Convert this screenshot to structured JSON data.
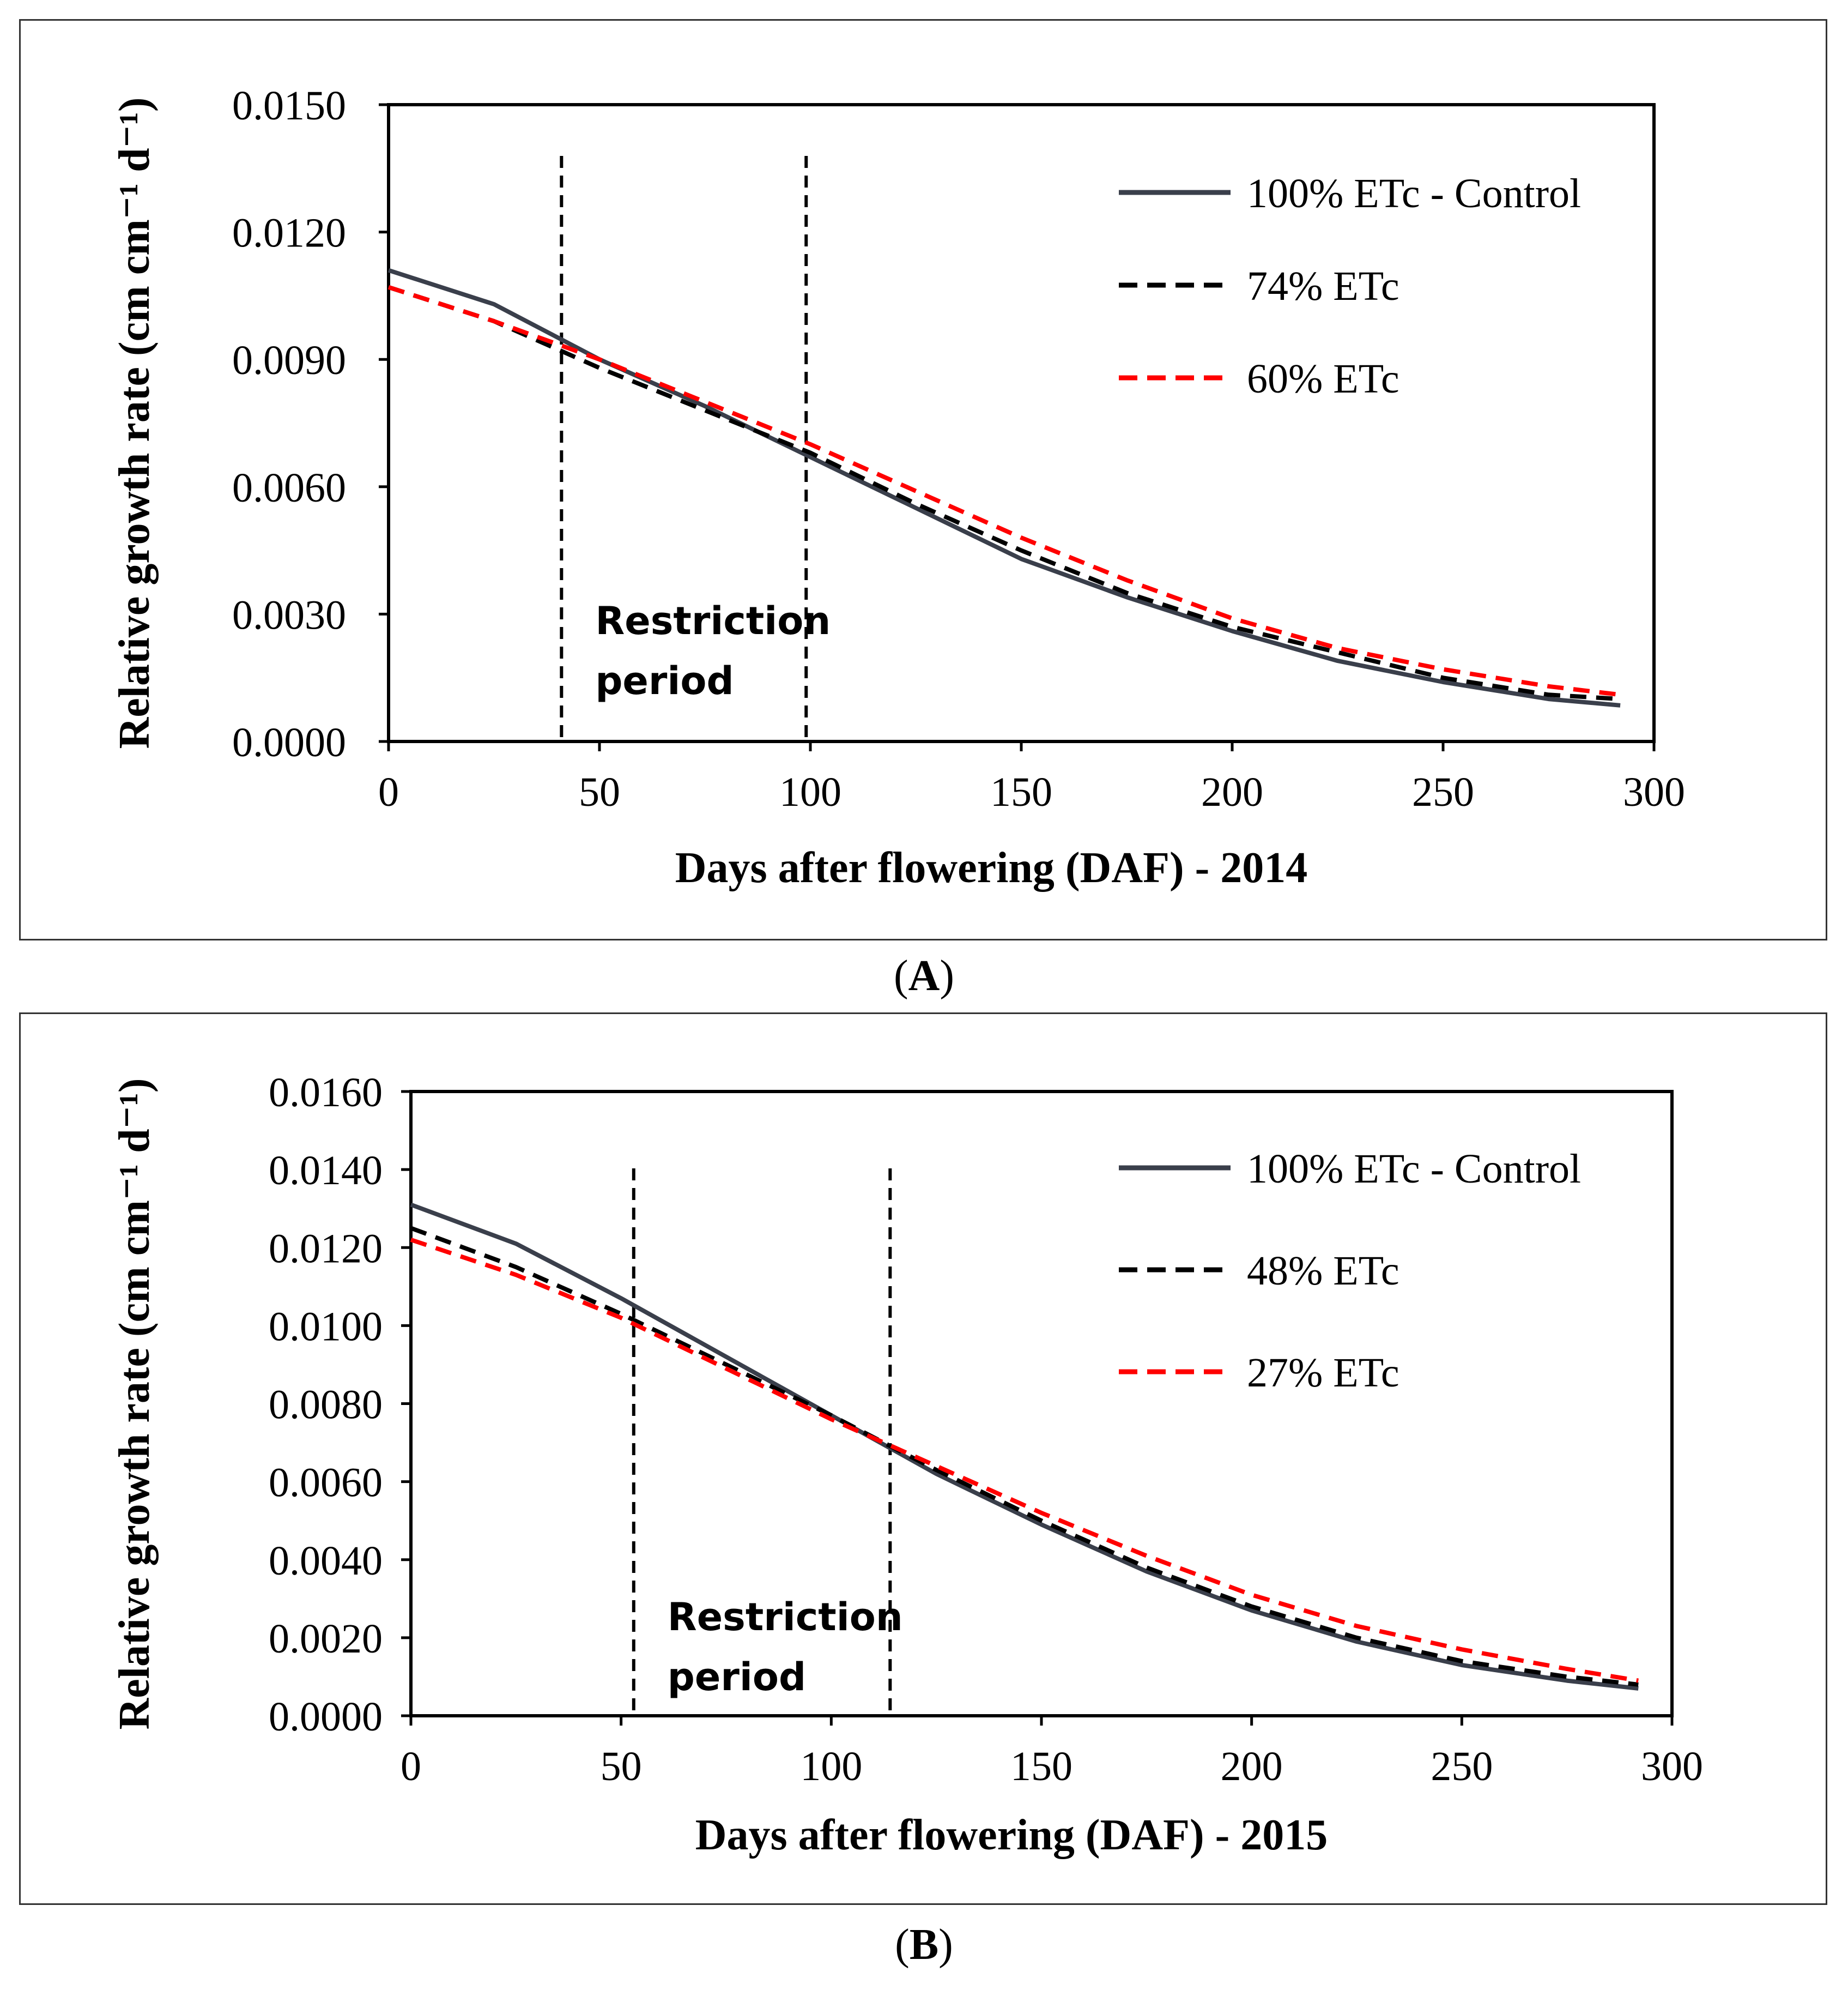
{
  "figure_labels": [
    "A",
    "B"
  ],
  "chart_data": [
    {
      "type": "line",
      "panel": "A",
      "xlabel": "Days after flowering (DAF) - 2014",
      "ylabel": "Relative growth rate (cm cm⁻¹ d⁻¹)",
      "xlim": [
        0,
        300
      ],
      "ylim": [
        0,
        0.015
      ],
      "x_ticks": [
        "0",
        "50",
        "100",
        "150",
        "200",
        "250",
        "300"
      ],
      "y_ticks": [
        "0.0000",
        "0.0030",
        "0.0060",
        "0.0090",
        "0.0120",
        "0.0150"
      ],
      "legend_position": "top-right",
      "annotation": [
        "Restriction",
        "period"
      ],
      "restriction_period": [
        41,
        99
      ],
      "x": [
        0,
        25,
        50,
        75,
        100,
        125,
        150,
        175,
        200,
        225,
        250,
        275,
        292
      ],
      "series": [
        {
          "name": "100% ETc - Control",
          "color": "#3a3f4b",
          "dash": "solid",
          "values": [
            0.0111,
            0.0103,
            0.009,
            0.0079,
            0.0067,
            0.0055,
            0.0043,
            0.0034,
            0.0026,
            0.0019,
            0.0014,
            0.001,
            0.00085
          ]
        },
        {
          "name": "74% ETc",
          "color": "#000000",
          "dash": "dashed",
          "values": [
            0.0107,
            0.0099,
            0.0088,
            0.0078,
            0.0068,
            0.0056,
            0.0045,
            0.0035,
            0.0027,
            0.0021,
            0.0015,
            0.0011,
            0.001
          ]
        },
        {
          "name": "60% ETc",
          "color": "#ff0000",
          "dash": "dashed",
          "values": [
            0.0107,
            0.0099,
            0.009,
            0.008,
            0.007,
            0.0059,
            0.0048,
            0.0038,
            0.0029,
            0.0022,
            0.0017,
            0.0013,
            0.0011
          ]
        }
      ]
    },
    {
      "type": "line",
      "panel": "B",
      "xlabel": "Days after flowering (DAF) - 2015",
      "ylabel": "Relative growth rate (cm cm⁻¹ d⁻¹)",
      "xlim": [
        0,
        300
      ],
      "ylim": [
        0,
        0.016
      ],
      "x_ticks": [
        "0",
        "50",
        "100",
        "150",
        "200",
        "250",
        "300"
      ],
      "y_ticks": [
        "0.0000",
        "0.0020",
        "0.0040",
        "0.0060",
        "0.0080",
        "0.0100",
        "0.0120",
        "0.0140",
        "0.0160"
      ],
      "legend_position": "top-right",
      "annotation": [
        "Restriction",
        "period"
      ],
      "restriction_period": [
        53,
        114
      ],
      "x": [
        0,
        25,
        50,
        75,
        100,
        125,
        150,
        175,
        200,
        225,
        250,
        275,
        292
      ],
      "series": [
        {
          "name": "100% ETc - Control",
          "color": "#3a3f4b",
          "dash": "solid",
          "values": [
            0.0131,
            0.0121,
            0.0107,
            0.0092,
            0.0077,
            0.0062,
            0.0049,
            0.0037,
            0.0027,
            0.0019,
            0.0013,
            0.0009,
            0.0007
          ]
        },
        {
          "name": "48% ETc",
          "color": "#000000",
          "dash": "dashed",
          "values": [
            0.0125,
            0.0115,
            0.0103,
            0.009,
            0.0077,
            0.0063,
            0.005,
            0.0038,
            0.0028,
            0.002,
            0.0014,
            0.001,
            0.0008
          ]
        },
        {
          "name": "27% ETc",
          "color": "#ff0000",
          "dash": "dashed",
          "values": [
            0.0122,
            0.0113,
            0.0102,
            0.0089,
            0.0076,
            0.0064,
            0.0052,
            0.0041,
            0.0031,
            0.0023,
            0.0017,
            0.0012,
            0.0009
          ]
        }
      ]
    }
  ]
}
